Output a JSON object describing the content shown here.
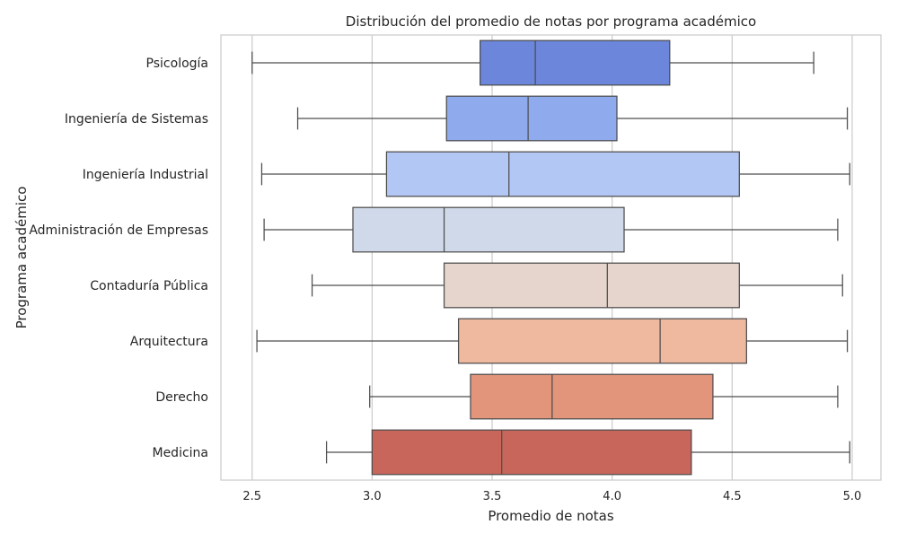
{
  "chart_data": {
    "type": "boxplot",
    "orientation": "horizontal",
    "title": "Distribución del promedio de notas por programa académico",
    "xlabel": "Promedio de notas",
    "ylabel": "Programa académico",
    "xlim": [
      2.37,
      5.12
    ],
    "xticks": [
      2.5,
      3.0,
      3.5,
      4.0,
      4.5,
      5.0
    ],
    "xtick_labels": [
      "2.5",
      "3.0",
      "3.5",
      "4.0",
      "4.5",
      "5.0"
    ],
    "grid": "vertical",
    "legend": "none",
    "categories": [
      "Psicología",
      "Ingeniería de Sistemas",
      "Ingeniería Industrial",
      "Administración de Empresas",
      "Contaduría Pública",
      "Arquitectura",
      "Derecho",
      "Medicina"
    ],
    "boxes": [
      {
        "whisker_low": 2.5,
        "q1": 3.45,
        "median": 3.68,
        "q3": 4.24,
        "whisker_high": 4.84,
        "color": "#6b86db"
      },
      {
        "whisker_low": 2.69,
        "q1": 3.31,
        "median": 3.65,
        "q3": 4.02,
        "whisker_high": 4.98,
        "color": "#8fabee"
      },
      {
        "whisker_low": 2.54,
        "q1": 3.06,
        "median": 3.57,
        "q3": 4.53,
        "whisker_high": 4.99,
        "color": "#b3c7f4"
      },
      {
        "whisker_low": 2.55,
        "q1": 2.92,
        "median": 3.3,
        "q3": 4.05,
        "whisker_high": 4.94,
        "color": "#d0d9e9"
      },
      {
        "whisker_low": 2.75,
        "q1": 3.3,
        "median": 3.98,
        "q3": 4.53,
        "whisker_high": 4.96,
        "color": "#e6d5cc"
      },
      {
        "whisker_low": 2.52,
        "q1": 3.36,
        "median": 4.2,
        "q3": 4.56,
        "whisker_high": 4.98,
        "color": "#efb9a0"
      },
      {
        "whisker_low": 2.99,
        "q1": 3.41,
        "median": 3.75,
        "q3": 4.42,
        "whisker_high": 4.94,
        "color": "#e2957b"
      },
      {
        "whisker_low": 2.81,
        "q1": 3.0,
        "median": 3.54,
        "q3": 4.33,
        "whisker_high": 4.99,
        "color": "#c8665b"
      }
    ],
    "colors": {
      "axes_frame": "#cccccc",
      "grid": "#cccccc",
      "box_edge": "#4d4d4d",
      "text": "#262626"
    }
  }
}
